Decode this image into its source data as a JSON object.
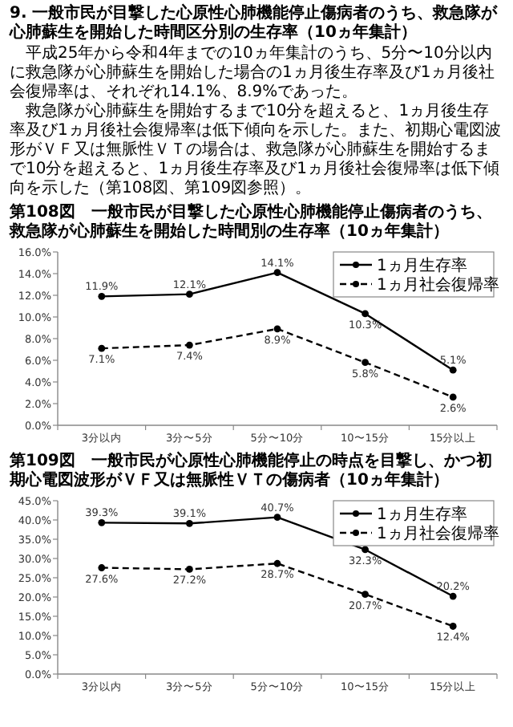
{
  "chart_data": [
    {
      "type": "other",
      "title": "9. 一般市民が目撃した心原性心肺機能停止傷病者のうち、救急隊が心肺蘇生を開始した時間区分別の生存率（10ヵ年集計）",
      "annotations": [
        "平成25年から令和4年までの10ヵ年集計のうち、5分〜10分以内に救急隊が心肺蘇生を開始した場合の1ヵ月後生存率及び1ヵ月後社会復帰率は、それぞれ14.1%、8.9%であった。",
        "救急隊が心肺蘇生を開始するまで10分を超えると、1ヵ月後生存率及び1ヵ月後社会復帰率は低下傾向を示した。また、初期心電図波形がＶＦ又は無脈性ＶＴの場合は、救急隊が心肺蘇生を開始するまで10分を超えると、1ヵ月後生存率及び1ヵ月後社会復帰率は低下傾向を示した（第108図、第109図参照）。"
      ]
    },
    {
      "type": "line",
      "title": "第108図　一般市民が目撃した心原性心肺機能停止傷病者のうち、救急隊が心肺蘇生を開始した時間別の生存率（10ヵ年集計）",
      "categories": [
        "3分以内",
        "3分〜5分",
        "5分〜10分",
        "10〜15分",
        "15分以上"
      ],
      "series": [
        {
          "name": "1ヵ月生存率",
          "color": "#000000",
          "line_style": "solid",
          "values": [
            11.9,
            12.1,
            14.1,
            10.3,
            5.1
          ],
          "value_labels": [
            "11.9%",
            "12.1%",
            "14.1%",
            "10.3%",
            "5.1%"
          ]
        },
        {
          "name": "1ヵ月社会復帰率",
          "color": "#000000",
          "line_style": "dashed",
          "values": [
            7.1,
            7.4,
            8.9,
            5.8,
            2.6
          ],
          "value_labels": [
            "7.1%",
            "7.4%",
            "8.9%",
            "5.8%",
            "2.6%"
          ]
        }
      ],
      "ylim": [
        0,
        16
      ],
      "yticks": [
        {
          "value": 0,
          "label": "0.0%"
        },
        {
          "value": 2,
          "label": "2.0%"
        },
        {
          "value": 4,
          "label": "4.0%"
        },
        {
          "value": 6,
          "label": "6.0%"
        },
        {
          "value": 8,
          "label": "8.0%"
        },
        {
          "value": 10,
          "label": "10.0%"
        },
        {
          "value": 12,
          "label": "12.0%"
        },
        {
          "value": 14,
          "label": "14.0%"
        },
        {
          "value": 16,
          "label": "16.0%"
        }
      ],
      "marker": "circle",
      "legend": "top right"
    },
    {
      "type": "line",
      "title": "第109図　一般市民が心原性心肺機能停止の時点を目撃し、かつ初期心電図波形がＶＦ又は無脈性ＶＴの傷病者（10ヵ年集計）",
      "categories": [
        "3分以内",
        "3分〜5分",
        "5分〜10分",
        "10〜15分",
        "15分以上"
      ],
      "series": [
        {
          "name": "1ヵ月生存率",
          "color": "#000000",
          "line_style": "solid",
          "values": [
            39.3,
            39.1,
            40.7,
            32.3,
            20.2
          ],
          "value_labels": [
            "39.3%",
            "39.1%",
            "40.7%",
            "32.3%",
            "20.2%"
          ]
        },
        {
          "name": "1ヵ月社会復帰率",
          "color": "#000000",
          "line_style": "dashed",
          "values": [
            27.6,
            27.2,
            28.7,
            20.7,
            12.4
          ],
          "value_labels": [
            "27.6%",
            "27.2%",
            "28.7%",
            "20.7%",
            "12.4%"
          ]
        }
      ],
      "ylim": [
        0,
        45
      ],
      "yticks": [
        {
          "value": 0,
          "label": "0.0%"
        },
        {
          "value": 5,
          "label": "5.0%"
        },
        {
          "value": 10,
          "label": "10.0%"
        },
        {
          "value": 15,
          "label": "15.0%"
        },
        {
          "value": 20,
          "label": "20.0%"
        },
        {
          "value": 25,
          "label": "25.0%"
        },
        {
          "value": 30,
          "label": "30.0%"
        },
        {
          "value": 35,
          "label": "35.0%"
        },
        {
          "value": 40,
          "label": "40.0%"
        },
        {
          "value": 45,
          "label": "45.0%"
        }
      ],
      "marker": "circle",
      "legend": "top right"
    }
  ]
}
